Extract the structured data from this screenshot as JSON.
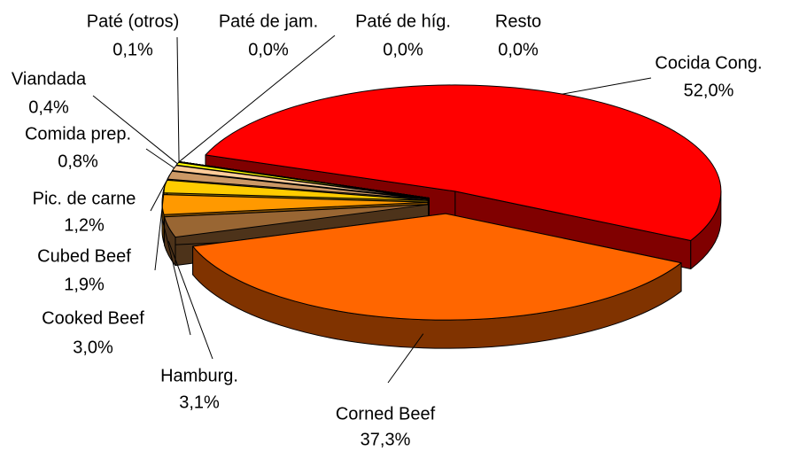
{
  "chart_data": {
    "type": "pie",
    "categories": [
      "Cocida Cong.",
      "Corned Beef",
      "Hamburg.",
      "Cooked Beef",
      "Cubed Beef",
      "Pic. de carne",
      "Comida prep.",
      "Viandada",
      "Paté (otros)",
      "Paté de jam.",
      "Paté de híg.",
      "Resto"
    ],
    "values": [
      52.0,
      37.3,
      3.1,
      3.0,
      1.9,
      1.2,
      0.8,
      0.4,
      0.1,
      0.0,
      0.0,
      0.0
    ],
    "value_labels": [
      "52,0%",
      "37,3%",
      "3,1%",
      "3,0%",
      "1,9%",
      "1,2%",
      "0,8%",
      "0,4%",
      "0,1%",
      "0,0%",
      "0,0%",
      "0,0%"
    ],
    "colors": [
      "#ff0000",
      "#ff6600",
      "#996633",
      "#ff9900",
      "#ffcc00",
      "#cc9966",
      "#ffcc99",
      "#ffff00",
      "#333333",
      "#33cccc",
      "#99ccff",
      "#ffffff"
    ]
  }
}
